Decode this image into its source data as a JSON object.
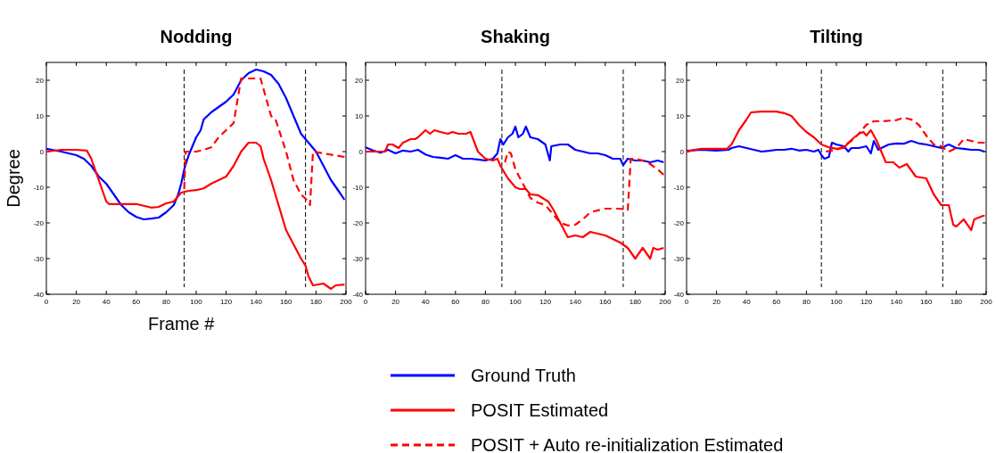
{
  "chart_data": [
    {
      "type": "line",
      "title": "Nodding",
      "xlabel": "Frame #",
      "ylabel": "Degree",
      "xlim": [
        0,
        200
      ],
      "ylim": [
        -40,
        25
      ],
      "xticks": [
        0,
        20,
        40,
        60,
        80,
        100,
        120,
        140,
        160,
        180,
        200
      ],
      "yticks": [
        -40,
        -30,
        -20,
        -10,
        0,
        10,
        20
      ],
      "legend": "bottom",
      "ref_lines": [
        {
          "axis": "x",
          "value": 92,
          "color": "#000000",
          "line_style": "dashed"
        },
        {
          "axis": "x",
          "value": 173,
          "color": "#000000",
          "line_style": "dashed"
        }
      ],
      "series": [
        {
          "name": "Ground Truth",
          "color": "#0000ff",
          "line_style": "solid",
          "x": [
            0,
            10,
            20,
            25,
            30,
            35,
            40,
            45,
            50,
            55,
            60,
            65,
            70,
            75,
            80,
            85,
            88,
            90,
            92,
            95,
            98,
            100,
            103,
            105,
            110,
            115,
            120,
            125,
            130,
            135,
            140,
            145,
            150,
            155,
            160,
            165,
            170,
            175,
            180,
            185,
            190,
            195,
            199
          ],
          "values": [
            0.8,
            0,
            -1,
            -2,
            -4,
            -7,
            -9,
            -12,
            -15,
            -17,
            -18.3,
            -19,
            -18.8,
            -18.5,
            -17,
            -15,
            -12,
            -9,
            -5,
            -1,
            2,
            4,
            6,
            9,
            11,
            12.5,
            14,
            16,
            20,
            22,
            23,
            22.5,
            21.5,
            19,
            15,
            10,
            5,
            2.5,
            0,
            -4,
            -8,
            -11,
            -13.5
          ]
        },
        {
          "name": "POSIT Estimated",
          "color": "#ff0000",
          "line_style": "solid",
          "x": [
            0,
            10,
            20,
            27,
            30,
            35,
            40,
            42,
            50,
            60,
            65,
            70,
            75,
            80,
            85,
            90,
            95,
            100,
            105,
            110,
            115,
            120,
            125,
            130,
            135,
            140,
            143,
            145,
            150,
            155,
            160,
            165,
            170,
            173,
            175,
            178,
            185,
            190,
            193,
            199
          ],
          "values": [
            0,
            0.5,
            0.5,
            0.3,
            -2,
            -8,
            -14,
            -14.7,
            -14.7,
            -14.7,
            -15.2,
            -15.7,
            -15.5,
            -14.5,
            -14,
            -11.5,
            -11,
            -10.8,
            -10.3,
            -9,
            -8,
            -7,
            -4,
            0,
            2.5,
            2.5,
            1.5,
            -2,
            -8,
            -15,
            -22,
            -26,
            -30,
            -32,
            -35,
            -37.5,
            -37,
            -38.5,
            -37.5,
            -37.3
          ]
        },
        {
          "name": "POSIT + Auto re-initialization Estimated",
          "color": "#ff0000",
          "line_style": "dashed",
          "x": [
            92,
            93,
            100,
            105,
            110,
            115,
            120,
            125,
            130,
            143,
            150,
            153,
            160,
            165,
            170,
            175,
            176,
            178,
            185,
            199
          ],
          "values": [
            -10.5,
            0,
            0,
            0.5,
            1.2,
            4,
            6,
            8,
            20.5,
            20.5,
            10,
            9,
            0,
            -8,
            -12,
            -14,
            -15,
            0,
            -0.5,
            -1.5
          ]
        }
      ]
    },
    {
      "type": "line",
      "title": "Shaking",
      "xlim": [
        0,
        200
      ],
      "ylim": [
        -40,
        25
      ],
      "xticks": [
        0,
        20,
        40,
        60,
        80,
        100,
        120,
        140,
        160,
        180,
        200
      ],
      "yticks": [
        -40,
        -30,
        -20,
        -10,
        0,
        10,
        20
      ],
      "ref_lines": [
        {
          "axis": "x",
          "value": 91,
          "color": "#000000",
          "line_style": "dashed"
        },
        {
          "axis": "x",
          "value": 172,
          "color": "#000000",
          "line_style": "dashed"
        }
      ],
      "series": [
        {
          "color": "#0000ff",
          "line_style": "solid",
          "x": [
            0,
            5,
            10,
            15,
            20,
            25,
            30,
            35,
            40,
            45,
            50,
            55,
            60,
            65,
            70,
            75,
            80,
            85,
            88,
            90,
            92,
            95,
            98,
            100,
            102,
            105,
            107,
            110,
            115,
            120,
            123,
            124,
            130,
            135,
            140,
            145,
            150,
            155,
            160,
            165,
            170,
            172,
            175,
            180,
            185,
            190,
            195,
            199
          ],
          "values": [
            1.2,
            0.3,
            -0.3,
            0.5,
            -0.5,
            0.3,
            0,
            0.5,
            -0.8,
            -1.5,
            -1.7,
            -2,
            -1,
            -2,
            -2,
            -2.2,
            -2.5,
            -2,
            -0.5,
            3.5,
            2,
            4,
            5,
            7,
            4,
            5,
            7,
            4,
            3.5,
            2,
            -2.5,
            1.5,
            2,
            2,
            0.5,
            0,
            -0.5,
            -0.5,
            -1,
            -2,
            -2,
            -3.8,
            -2,
            -2.5,
            -2.5,
            -3,
            -2.5,
            -3
          ]
        },
        {
          "color": "#ff0000",
          "line_style": "solid",
          "x": [
            0,
            10,
            13,
            15,
            18,
            20,
            22,
            25,
            30,
            33,
            35,
            40,
            43,
            46,
            50,
            55,
            58,
            62,
            67,
            70,
            75,
            80,
            85,
            88,
            90,
            95,
            100,
            103,
            107,
            110,
            115,
            120,
            122,
            125,
            130,
            135,
            140,
            145,
            150,
            155,
            160,
            165,
            170,
            175,
            180,
            185,
            190,
            192,
            195,
            199
          ],
          "values": [
            0,
            0,
            0,
            2,
            2,
            1.5,
            1,
            2.5,
            3.5,
            3.5,
            4,
            6,
            5,
            6,
            5.5,
            5,
            5.5,
            5,
            5,
            5.5,
            0,
            -2,
            -2.5,
            -2,
            -4,
            -7.5,
            -10,
            -10.5,
            -10.5,
            -12,
            -12.2,
            -13.5,
            -14,
            -16,
            -20,
            -24,
            -23.5,
            -24,
            -22.5,
            -23,
            -23.5,
            -24.5,
            -25.5,
            -27,
            -30,
            -27,
            -30,
            -27,
            -27.5,
            -27
          ]
        },
        {
          "color": "#ff0000",
          "line_style": "dashed",
          "x": [
            93,
            95,
            97,
            100,
            105,
            110,
            115,
            120,
            125,
            130,
            135,
            140,
            145,
            150,
            160,
            170,
            175,
            177,
            180,
            185,
            190,
            195,
            199
          ],
          "values": [
            -3,
            0,
            -0.5,
            -5,
            -9,
            -13,
            -14.3,
            -15,
            -17.5,
            -20,
            -20.7,
            -20.5,
            -19,
            -17,
            -16,
            -16,
            -16.5,
            -2,
            -2,
            -2.5,
            -3.5,
            -5,
            -6.5
          ]
        }
      ]
    },
    {
      "type": "line",
      "title": "Tilting",
      "xlim": [
        0,
        200
      ],
      "ylim": [
        -40,
        25
      ],
      "xticks": [
        0,
        20,
        40,
        60,
        80,
        100,
        120,
        140,
        160,
        180,
        200
      ],
      "yticks": [
        -40,
        -30,
        -20,
        -10,
        0,
        10,
        20
      ],
      "ref_lines": [
        {
          "axis": "x",
          "value": 90,
          "color": "#000000",
          "line_style": "dashed"
        },
        {
          "axis": "x",
          "value": 171,
          "color": "#000000",
          "line_style": "dashed"
        }
      ],
      "series": [
        {
          "color": "#0000ff",
          "line_style": "solid",
          "x": [
            0,
            10,
            20,
            28,
            30,
            35,
            40,
            45,
            50,
            55,
            60,
            65,
            70,
            75,
            80,
            85,
            88,
            90,
            92,
            95,
            97,
            100,
            105,
            108,
            110,
            115,
            120,
            123,
            125,
            128,
            130,
            135,
            140,
            145,
            150,
            155,
            160,
            165,
            170,
            175,
            180,
            185,
            190,
            195,
            199
          ],
          "values": [
            0.2,
            0.5,
            0.3,
            0.5,
            1,
            1.5,
            1,
            0.5,
            0,
            0.2,
            0.5,
            0.5,
            0.8,
            0.3,
            0.5,
            0,
            0.5,
            -1,
            -2,
            -1.5,
            2.5,
            2,
            1.5,
            0,
            1,
            1,
            1.5,
            -0.5,
            3,
            0.5,
            1,
            2,
            2.3,
            2.2,
            3,
            2.3,
            2,
            1.5,
            1,
            2,
            1,
            0.8,
            0.5,
            0.5,
            0
          ]
        },
        {
          "color": "#ff0000",
          "line_style": "solid",
          "x": [
            0,
            5,
            10,
            20,
            27,
            30,
            35,
            40,
            43,
            50,
            60,
            65,
            70,
            75,
            80,
            85,
            90,
            95,
            100,
            105,
            108,
            112,
            115,
            118,
            120,
            123,
            127,
            130,
            133,
            138,
            142,
            147,
            153,
            160,
            165,
            170,
            175,
            178,
            180,
            185,
            190,
            192,
            198,
            199
          ],
          "values": [
            0,
            0.5,
            0.8,
            0.8,
            0.8,
            2,
            6,
            9,
            11,
            11.2,
            11.2,
            10.8,
            10,
            7.5,
            5.5,
            4,
            2,
            1.2,
            0.8,
            1,
            2.5,
            4,
            5,
            5.5,
            4.5,
            6,
            3,
            0,
            -3,
            -3,
            -4.5,
            -3.5,
            -7,
            -7.5,
            -12,
            -15,
            -15,
            -20.5,
            -21,
            -19,
            -22,
            -19,
            -18,
            -18
          ]
        },
        {
          "color": "#ff0000",
          "line_style": "dashed",
          "x": [
            93,
            100,
            105,
            110,
            115,
            120,
            125,
            130,
            140,
            145,
            150,
            155,
            160,
            165,
            170,
            175,
            180,
            185,
            190,
            195,
            199
          ],
          "values": [
            0,
            0.5,
            1.5,
            3,
            5,
            7.5,
            8.5,
            8.5,
            8.8,
            9.5,
            9,
            7.5,
            4.5,
            2,
            1.5,
            0,
            1,
            3.5,
            3,
            2.5,
            2.5
          ]
        }
      ]
    }
  ]
}
